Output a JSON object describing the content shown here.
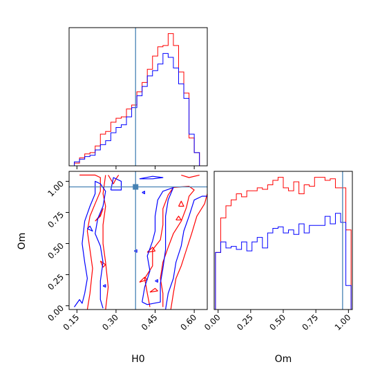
{
  "chart_data": {
    "type": "corner",
    "colors": {
      "series_a": "#ff0000",
      "series_b": "#0000ff",
      "truth": "#4682b4"
    },
    "parameters": [
      "H0",
      "Om"
    ],
    "truth": {
      "H0": 0.375,
      "Om": 0.955
    },
    "panels": [
      {
        "id": "hist-H0",
        "type": "histogram",
        "xlim": [
          0.12,
          0.65
        ],
        "xticks": [
          0.15,
          0.3,
          0.45,
          0.6
        ],
        "bin_edges": [
          0.12,
          0.14,
          0.16,
          0.18,
          0.2,
          0.22,
          0.24,
          0.26,
          0.28,
          0.3,
          0.32,
          0.34,
          0.36,
          0.38,
          0.4,
          0.42,
          0.44,
          0.46,
          0.48,
          0.5,
          0.52,
          0.54,
          0.56,
          0.58,
          0.6,
          0.62,
          0.64
        ],
        "series": [
          {
            "name": "",
            "color": "#ff0000",
            "values": [
              0,
              0.02,
              0.06,
              0.09,
              0.1,
              0.15,
              0.24,
              0.26,
              0.33,
              0.36,
              0.37,
              0.43,
              0.46,
              0.56,
              0.63,
              0.73,
              0.83,
              0.9,
              0.91,
              1.0,
              0.91,
              0.71,
              0.55,
              0.21,
              0.1,
              0
            ]
          },
          {
            "name": "",
            "color": "#0000ff",
            "values": [
              0,
              0.03,
              0.05,
              0.07,
              0.08,
              0.12,
              0.16,
              0.19,
              0.25,
              0.29,
              0.31,
              0.37,
              0.44,
              0.53,
              0.6,
              0.68,
              0.72,
              0.77,
              0.85,
              0.82,
              0.74,
              0.62,
              0.51,
              0.24,
              0.1,
              0
            ]
          }
        ]
      },
      {
        "id": "hist-Om",
        "type": "histogram",
        "xlim": [
          -0.03,
          1.03
        ],
        "xticks": [
          0.0,
          0.25,
          0.5,
          0.75,
          1.0
        ],
        "xlabel": "Om",
        "bin_edges": [
          -0.02,
          0.02,
          0.06,
          0.1,
          0.14,
          0.18,
          0.22,
          0.26,
          0.3,
          0.34,
          0.38,
          0.42,
          0.46,
          0.5,
          0.54,
          0.58,
          0.62,
          0.66,
          0.7,
          0.74,
          0.78,
          0.82,
          0.86,
          0.9,
          0.94,
          0.98,
          1.02
        ],
        "series": [
          {
            "name": "",
            "color": "#ff0000",
            "values": [
              0.38,
              0.61,
              0.69,
              0.73,
              0.77,
              0.75,
              0.79,
              0.79,
              0.81,
              0.8,
              0.83,
              0.86,
              0.88,
              0.81,
              0.79,
              0.85,
              0.77,
              0.83,
              0.82,
              0.88,
              0.88,
              0.86,
              0.87,
              0.81,
              0.81,
              0.53
            ]
          },
          {
            "name": "",
            "color": "#0000ff",
            "values": [
              0.38,
              0.45,
              0.41,
              0.42,
              0.4,
              0.45,
              0.39,
              0.45,
              0.48,
              0.41,
              0.51,
              0.54,
              0.55,
              0.51,
              0.53,
              0.5,
              0.57,
              0.51,
              0.56,
              0.56,
              0.56,
              0.62,
              0.57,
              0.64,
              0.58,
              0.16
            ]
          }
        ]
      },
      {
        "id": "contour-H0-Om",
        "type": "contour",
        "xlim": [
          0.12,
          0.65
        ],
        "ylim": [
          -0.03,
          1.08
        ],
        "xticks": [
          0.15,
          0.3,
          0.45,
          0.6
        ],
        "yticks": [
          0.0,
          0.25,
          0.5,
          0.75,
          1.0
        ],
        "xlabel": "H0",
        "ylabel": "Om",
        "series": [
          {
            "name": "",
            "color": "#ff0000",
            "contours": [
              [
                [
                  0.16,
                  1.05
                ],
                [
                  0.22,
                  1.05
                ],
                [
                  0.24,
                  1.03
                ],
                [
                  0.24,
                  0.92
                ],
                [
                  0.22,
                  0.82
                ],
                [
                  0.2,
                  0.72
                ],
                [
                  0.19,
                  0.6
                ],
                [
                  0.2,
                  0.45
                ],
                [
                  0.21,
                  0.3
                ],
                [
                  0.2,
                  0.1
                ],
                [
                  0.19,
                  -0.03
                ]
              ],
              [
                [
                  0.26,
                  -0.03
                ],
                [
                  0.27,
                  0.15
                ],
                [
                  0.26,
                  0.35
                ],
                [
                  0.25,
                  0.5
                ],
                [
                  0.25,
                  0.65
                ],
                [
                  0.26,
                  0.8
                ],
                [
                  0.25,
                  0.9
                ],
                [
                  0.26,
                  1.05
                ]
              ],
              [
                [
                  0.27,
                  1.05
                ],
                [
                  0.29,
                  0.98
                ],
                [
                  0.3,
                  1.02
                ],
                [
                  0.31,
                  1.05
                ]
              ],
              [
                [
                  0.55,
                  1.05
                ],
                [
                  0.58,
                  1.03
                ],
                [
                  0.62,
                  1.05
                ]
              ],
              [
                [
                  0.43,
                  -0.01
                ],
                [
                  0.42,
                  0.1
                ],
                [
                  0.41,
                  0.22
                ],
                [
                  0.44,
                  0.32
                ],
                [
                  0.44,
                  0.45
                ],
                [
                  0.47,
                  0.53
                ],
                [
                  0.48,
                  0.65
                ],
                [
                  0.48,
                  0.78
                ],
                [
                  0.5,
                  0.89
                ],
                [
                  0.52,
                  0.95
                ],
                [
                  0.58,
                  0.96
                ],
                [
                  0.6,
                  0.93
                ],
                [
                  0.58,
                  0.88
                ],
                [
                  0.57,
                  0.79
                ],
                [
                  0.55,
                  0.68
                ],
                [
                  0.52,
                  0.58
                ],
                [
                  0.5,
                  0.47
                ],
                [
                  0.48,
                  0.35
                ],
                [
                  0.47,
                  0.22
                ],
                [
                  0.48,
                  0.1
                ],
                [
                  0.48,
                  -0.01
                ]
              ],
              [
                [
                  0.51,
                  -0.03
                ],
                [
                  0.52,
                  0.1
                ],
                [
                  0.53,
                  0.22
                ],
                [
                  0.55,
                  0.32
                ],
                [
                  0.57,
                  0.45
                ],
                [
                  0.59,
                  0.58
                ],
                [
                  0.61,
                  0.72
                ],
                [
                  0.64,
                  0.82
                ],
                [
                  0.65,
                  0.9
                ]
              ],
              [
                [
                  0.22,
                  0.68
                ],
                [
                  0.24,
                  0.73
                ],
                [
                  0.25,
                  0.78
                ],
                [
                  0.24,
                  0.72
                ],
                [
                  0.22,
                  0.68
                ]
              ],
              [
                [
                  0.24,
                  0.36
                ],
                [
                  0.26,
                  0.33
                ],
                [
                  0.25,
                  0.31
                ],
                [
                  0.24,
                  0.36
                ]
              ],
              [
                [
                  0.39,
                  0.19
                ],
                [
                  0.41,
                  0.23
                ],
                [
                  0.42,
                  0.21
                ],
                [
                  0.39,
                  0.19
                ]
              ],
              [
                [
                  0.43,
                  0.11
                ],
                [
                  0.45,
                  0.14
                ],
                [
                  0.46,
                  0.12
                ],
                [
                  0.43,
                  0.11
                ]
              ],
              [
                [
                  0.53,
                  0.69
                ],
                [
                  0.54,
                  0.72
                ],
                [
                  0.55,
                  0.69
                ],
                [
                  0.53,
                  0.69
                ]
              ],
              [
                [
                  0.54,
                  0.8
                ],
                [
                  0.55,
                  0.84
                ],
                [
                  0.56,
                  0.8
                ],
                [
                  0.54,
                  0.8
                ]
              ],
              [
                [
                  0.42,
                  0.43
                ],
                [
                  0.44,
                  0.47
                ],
                [
                  0.45,
                  0.44
                ],
                [
                  0.42,
                  0.43
                ]
              ]
            ]
          },
          {
            "name": "",
            "color": "#0000ff",
            "contours": [
              [
                [
                  0.14,
                  -0.01
                ],
                [
                  0.16,
                  0.05
                ],
                [
                  0.17,
                  0.02
                ],
                [
                  0.18,
                  0.1
                ],
                [
                  0.19,
                  0.22
                ],
                [
                  0.18,
                  0.35
                ],
                [
                  0.17,
                  0.5
                ],
                [
                  0.18,
                  0.68
                ],
                [
                  0.2,
                  0.8
                ],
                [
                  0.22,
                  0.9
                ],
                [
                  0.22,
                  1.0
                ],
                [
                  0.24,
                  0.98
                ],
                [
                  0.26,
                  0.92
                ],
                [
                  0.25,
                  0.8
                ],
                [
                  0.23,
                  0.7
                ],
                [
                  0.22,
                  0.58
                ],
                [
                  0.24,
                  0.48
                ],
                [
                  0.25,
                  0.35
                ],
                [
                  0.24,
                  0.2
                ],
                [
                  0.24,
                  0.05
                ],
                [
                  0.25,
                  -0.02
                ]
              ],
              [
                [
                  0.28,
                  0.93
                ],
                [
                  0.32,
                  0.93
                ],
                [
                  0.32,
                  1.0
                ],
                [
                  0.29,
                  1.03
                ],
                [
                  0.28,
                  0.93
                ]
              ],
              [
                [
                  0.39,
                  1.02
                ],
                [
                  0.44,
                  1.04
                ],
                [
                  0.48,
                  1.03
                ],
                [
                  0.44,
                  1.02
                ],
                [
                  0.39,
                  1.02
                ]
              ],
              [
                [
                  0.4,
                  0.03
                ],
                [
                  0.41,
                  0.15
                ],
                [
                  0.43,
                  0.28
                ],
                [
                  0.42,
                  0.4
                ],
                [
                  0.44,
                  0.52
                ],
                [
                  0.45,
                  0.6
                ],
                [
                  0.45,
                  0.72
                ],
                [
                  0.46,
                  0.85
                ],
                [
                  0.48,
                  0.92
                ],
                [
                  0.52,
                  0.95
                ],
                [
                  0.5,
                  0.85
                ],
                [
                  0.49,
                  0.72
                ],
                [
                  0.49,
                  0.58
                ],
                [
                  0.49,
                  0.45
                ],
                [
                  0.48,
                  0.3
                ],
                [
                  0.47,
                  0.18
                ],
                [
                  0.47,
                  0.03
                ],
                [
                  0.42,
                  0.01
                ],
                [
                  0.4,
                  0.03
                ]
              ],
              [
                [
                  0.49,
                  -0.03
                ],
                [
                  0.5,
                  0.1
                ],
                [
                  0.52,
                  0.22
                ],
                [
                  0.53,
                  0.35
                ],
                [
                  0.55,
                  0.48
                ],
                [
                  0.56,
                  0.6
                ],
                [
                  0.58,
                  0.72
                ],
                [
                  0.6,
                  0.85
                ],
                [
                  0.63,
                  0.88
                ],
                [
                  0.65,
                  0.88
                ]
              ],
              [
                [
                  0.19,
                  0.62
                ],
                [
                  0.2,
                  0.64
                ],
                [
                  0.21,
                  0.6
                ],
                [
                  0.19,
                  0.62
                ]
              ],
              [
                [
                  0.25,
                  0.16
                ],
                [
                  0.26,
                  0.17
                ],
                [
                  0.26,
                  0.15
                ],
                [
                  0.25,
                  0.16
                ]
              ],
              [
                [
                  0.4,
                  0.91
                ],
                [
                  0.41,
                  0.92
                ],
                [
                  0.41,
                  0.9
                ],
                [
                  0.4,
                  0.91
                ]
              ],
              [
                [
                  0.37,
                  0.44
                ],
                [
                  0.38,
                  0.45
                ],
                [
                  0.38,
                  0.43
                ],
                [
                  0.37,
                  0.44
                ]
              ],
              [
                [
                  0.45,
                  0.2
                ],
                [
                  0.46,
                  0.21
                ],
                [
                  0.46,
                  0.19
                ],
                [
                  0.45,
                  0.2
                ]
              ]
            ]
          }
        ]
      }
    ]
  }
}
